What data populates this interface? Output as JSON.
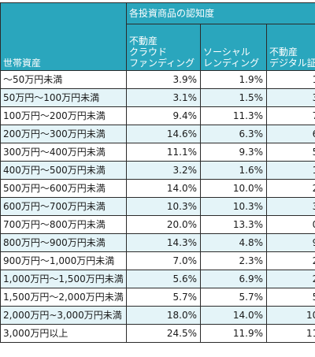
{
  "table": {
    "row_header": "世帯資産",
    "group_header": "各投資商品の認知度",
    "columns": [
      "不動産\nクラウド\nファンディング",
      "ソーシャル\nレンディング",
      "不動産\nデジタル証"
    ],
    "rows": [
      {
        "label": "〜50万円未満",
        "values": [
          "3.9%",
          "1.9%",
          "1."
        ]
      },
      {
        "label": "50万円〜100万円未満",
        "values": [
          "3.1%",
          "1.5%",
          "3."
        ]
      },
      {
        "label": "100万円〜200万円未満",
        "values": [
          "9.4%",
          "11.3%",
          "7."
        ]
      },
      {
        "label": "200万円〜300万円未満",
        "values": [
          "14.6%",
          "6.3%",
          "6."
        ]
      },
      {
        "label": "300万円〜400万円未満",
        "values": [
          "11.1%",
          "9.3%",
          "5."
        ]
      },
      {
        "label": "400万円〜500万円未満",
        "values": [
          "3.2%",
          "1.6%",
          "1."
        ]
      },
      {
        "label": "500万円〜600万円未満",
        "values": [
          "14.0%",
          "10.0%",
          "2."
        ]
      },
      {
        "label": "600万円〜700万円未満",
        "values": [
          "10.3%",
          "10.3%",
          "3."
        ]
      },
      {
        "label": "700万円〜800万円未満",
        "values": [
          "20.0%",
          "13.3%",
          "0."
        ]
      },
      {
        "label": "800万円〜900万円未満",
        "values": [
          "14.3%",
          "4.8%",
          "9."
        ]
      },
      {
        "label": "900万円〜1,000万円未満",
        "values": [
          "7.0%",
          "2.3%",
          "2."
        ]
      },
      {
        "label": "1,000万円〜1,500万円未満",
        "values": [
          "5.6%",
          "6.9%",
          "2."
        ]
      },
      {
        "label": "1,500万円〜2,000万円未満",
        "values": [
          "5.7%",
          "5.7%",
          "5."
        ]
      },
      {
        "label": "2,000万円~3,000万円未満",
        "values": [
          "18.0%",
          "14.0%",
          "10."
        ]
      },
      {
        "label": "3,000万円以上",
        "values": [
          "24.5%",
          "11.9%",
          "11."
        ]
      }
    ]
  },
  "colors": {
    "header_bg": "#2aa6bd",
    "header_text": "#ffffff",
    "stripe": "#e4f4f8",
    "border": "#2b2b2b"
  }
}
